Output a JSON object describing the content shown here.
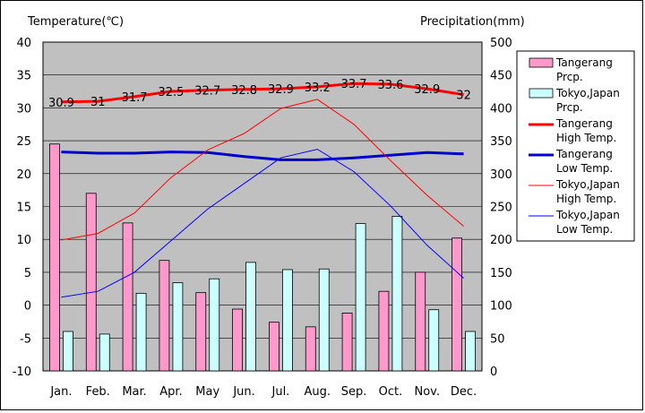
{
  "chart_data": {
    "type": "bar+line",
    "y_left_label": "Temperature(℃)",
    "y_right_label": "Precipitation(mm)",
    "y_left_range": [
      -10,
      40
    ],
    "y_right_range": [
      0,
      500
    ],
    "y_left_ticks": [
      "40",
      "35",
      "30",
      "25",
      "20",
      "15",
      "10",
      "5",
      "0",
      "-5",
      "-10"
    ],
    "y_right_ticks": [
      "500",
      "450",
      "400",
      "350",
      "300",
      "250",
      "200",
      "150",
      "100",
      "50",
      "0"
    ],
    "categories": [
      "Jan.",
      "Feb.",
      "Mar.",
      "Apr.",
      "May",
      "Jun.",
      "Jul.",
      "Aug.",
      "Sep.",
      "Oct.",
      "Nov.",
      "Dec."
    ],
    "grid": true,
    "series": [
      {
        "name": "Tangerang Prcp.",
        "kind": "bar",
        "axis": "right",
        "color": "#ff99cc",
        "values": [
          345,
          270,
          225,
          168,
          119,
          94,
          74,
          67,
          88,
          121,
          150,
          202
        ]
      },
      {
        "name": "Tokyo,Japan Prcp.",
        "kind": "bar",
        "axis": "right",
        "color": "#ccffff",
        "values": [
          60,
          56,
          118,
          134,
          140,
          165,
          154,
          155,
          224,
          235,
          93,
          60
        ]
      },
      {
        "name": "Tangerang High Temp.",
        "kind": "line",
        "axis": "left",
        "color": "#ff0000",
        "width": "thick",
        "values": [
          30.9,
          31.0,
          31.7,
          32.5,
          32.7,
          32.8,
          32.9,
          33.2,
          33.7,
          33.6,
          32.9,
          32.0
        ],
        "value_labels": [
          "30.9",
          "31",
          "31.7",
          "32.5",
          "32.7",
          "32.8",
          "32.9",
          "33.2",
          "33.7",
          "33.6",
          "32.9",
          "32"
        ]
      },
      {
        "name": "Tangerang Low Temp.",
        "kind": "line",
        "axis": "left",
        "color": "#0000cc",
        "width": "thick",
        "values": [
          23.3,
          23.1,
          23.1,
          23.3,
          23.2,
          22.6,
          22.1,
          22.1,
          22.4,
          22.8,
          23.2,
          23.0
        ]
      },
      {
        "name": "Tokyo,Japan High Temp.",
        "kind": "line",
        "axis": "left",
        "color": "#ff0000",
        "width": "thin",
        "values": [
          9.9,
          10.9,
          14.0,
          19.4,
          23.6,
          26.1,
          29.9,
          31.3,
          27.5,
          22.0,
          16.7,
          12.0
        ]
      },
      {
        "name": "Tokyo,Japan Low Temp.",
        "kind": "line",
        "axis": "left",
        "color": "#0000ff",
        "width": "thin",
        "values": [
          1.2,
          2.1,
          5.0,
          9.8,
          14.6,
          18.5,
          22.4,
          23.7,
          20.3,
          15.1,
          9.1,
          4.1
        ]
      }
    ],
    "legend": [
      {
        "label": "Tangerang\nPrcp.",
        "kind": "box",
        "color": "#ff99cc"
      },
      {
        "label": "Tokyo,Japan\nPrcp.",
        "kind": "box",
        "color": "#ccffff"
      },
      {
        "label": "Tangerang\nHigh Temp.",
        "kind": "line",
        "color": "#ff0000",
        "width": 3
      },
      {
        "label": "Tangerang\nLow Temp.",
        "kind": "line",
        "color": "#0000cc",
        "width": 3
      },
      {
        "label": "Tokyo,Japan\nHigh Temp.",
        "kind": "line",
        "color": "#ff0000",
        "width": 1
      },
      {
        "label": "Tokyo,Japan\nLow Temp.",
        "kind": "line",
        "color": "#0000ff",
        "width": 1
      }
    ],
    "legend_position": "right"
  }
}
